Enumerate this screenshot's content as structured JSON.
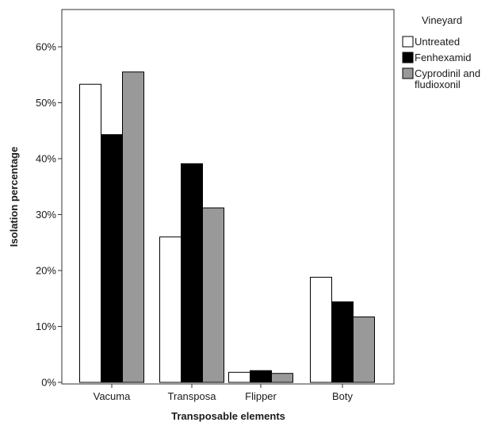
{
  "chart_data": {
    "type": "bar",
    "xlabel": "Transposable elements",
    "ylabel": "Isolation percentage",
    "categories": [
      "Vacuma",
      "Transposa",
      "Flipper",
      "Boty"
    ],
    "series": [
      {
        "name": "Untreated",
        "values": [
          53.3,
          26.0,
          1.8,
          18.8
        ],
        "color": "#ffffff"
      },
      {
        "name": "Fenhexamid",
        "values": [
          44.3,
          39.1,
          2.1,
          14.4
        ],
        "color": "#000000"
      },
      {
        "name": "Cyprodinil and fludioxonil",
        "values": [
          55.5,
          31.2,
          1.6,
          11.7
        ],
        "color": "#999999"
      }
    ],
    "ylim": [
      0,
      65
    ],
    "yticks": [
      0,
      10,
      20,
      30,
      40,
      50,
      60
    ],
    "ytick_labels": [
      "0%",
      "10%",
      "20%",
      "30%",
      "40%",
      "50%",
      "60%"
    ],
    "grid": false,
    "legend": {
      "title": "Vineyard",
      "placement": "right",
      "entries": [
        {
          "lines": [
            "Untreated"
          ],
          "color": "#ffffff"
        },
        {
          "lines": [
            "Fenhexamid"
          ],
          "color": "#000000"
        },
        {
          "lines": [
            "Cyprodinil and",
            "fludioxonil"
          ],
          "color": "#999999"
        }
      ]
    }
  }
}
